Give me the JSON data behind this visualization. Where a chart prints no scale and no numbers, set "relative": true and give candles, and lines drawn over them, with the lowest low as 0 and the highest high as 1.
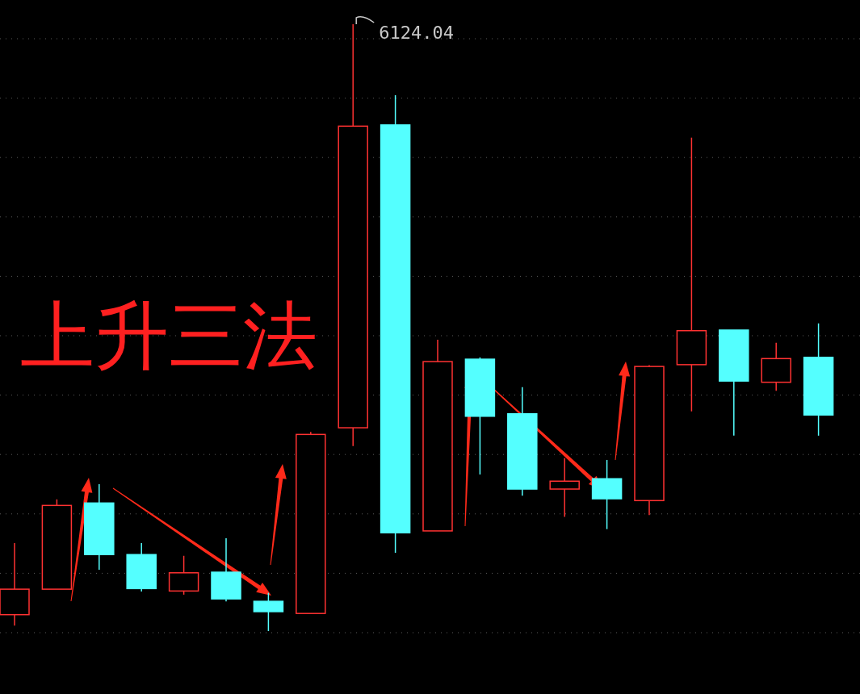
{
  "chart_data": {
    "type": "candlestick",
    "relative": true,
    "grid": "y",
    "categories": [
      null,
      null,
      null,
      null,
      null,
      null,
      null,
      null,
      null,
      null,
      null,
      null,
      null,
      null,
      null,
      null,
      null,
      null,
      null,
      null
    ],
    "ohlc": [
      [
        0.027,
        0.145,
        0.009,
        0.069
      ],
      [
        0.069,
        0.217,
        0.069,
        0.207
      ],
      [
        0.211,
        0.242,
        0.101,
        0.126
      ],
      [
        0.126,
        0.145,
        0.065,
        0.07
      ],
      [
        0.066,
        0.124,
        0.06,
        0.096
      ],
      [
        0.097,
        0.153,
        0.049,
        0.053
      ],
      [
        0.049,
        0.063,
        0,
        0.032
      ],
      [
        0.029,
        0.328,
        0.029,
        0.324
      ],
      [
        0.335,
        1,
        0.305,
        0.832
      ],
      [
        0.834,
        0.883,
        0.129,
        0.162
      ],
      [
        0.165,
        0.48,
        0.165,
        0.444
      ],
      [
        0.448,
        0.451,
        0.258,
        0.354
      ],
      [
        0.358,
        0.402,
        0.223,
        0.234
      ],
      [
        0.234,
        0.285,
        0.188,
        0.247
      ],
      [
        0.251,
        0.282,
        0.168,
        0.218
      ],
      [
        0.215,
        0.438,
        0.191,
        0.436
      ],
      [
        0.439,
        0.813,
        0.362,
        0.495
      ],
      [
        0.496,
        0.496,
        0.322,
        0.412
      ],
      [
        0.41,
        0.475,
        0.396,
        0.449
      ],
      [
        0.451,
        0.507,
        0.322,
        0.356
      ]
    ],
    "colors": [
      "#ff3232",
      "#ff3232",
      "#54ffff",
      "#54ffff",
      "#ff3232",
      "#54ffff",
      "#54ffff",
      "#ff3232",
      "#ff3232",
      "#54ffff",
      "#ff3232",
      "#54ffff",
      "#54ffff",
      "#ff3232",
      "#54ffff",
      "#ff3232",
      "#ff3232",
      "#54ffff",
      "#ff3232",
      "#54ffff"
    ],
    "annotations": [
      "上升三法",
      "6124.04"
    ]
  }
}
